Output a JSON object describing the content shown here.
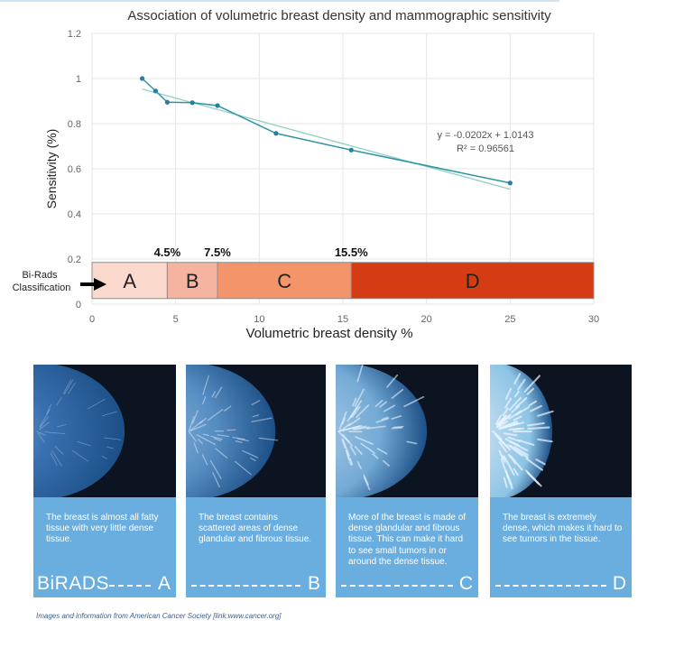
{
  "chart_data": {
    "type": "line",
    "title": "Association of volumetric breast density and mammographic sensitivity",
    "xlabel": "Volumetric breast density %",
    "ylabel": "Sensitivity (%)",
    "xlim": [
      0,
      30
    ],
    "ylim": [
      0,
      1.2
    ],
    "x_ticks": [
      0,
      5,
      10,
      15,
      20,
      25,
      30
    ],
    "y_ticks": [
      0,
      0.2,
      0.4,
      0.6,
      0.8,
      1,
      1.2
    ],
    "x_tick_labels": [
      "0",
      "5",
      "10",
      "15",
      "20",
      "25",
      "30"
    ],
    "y_tick_labels": [
      "0",
      "0.2",
      "0.4",
      "0.6",
      "0.8",
      "1",
      "1.2"
    ],
    "grid": true,
    "series": [
      {
        "x": [
          3,
          3.8,
          4.5,
          6,
          7.5,
          11,
          15.5,
          25
        ],
        "y": [
          1.0,
          0.945,
          0.895,
          0.893,
          0.88,
          0.757,
          0.683,
          0.537
        ],
        "color": "#2e93a3"
      }
    ],
    "trendline": {
      "slope": -0.0202,
      "intercept": 1.0143,
      "x_range": [
        3,
        25
      ],
      "equation": "y = -0.0202x + 1.0143",
      "r2": "R² = 0.96561",
      "color": "#8fd0c2"
    },
    "bands": [
      {
        "label": "A",
        "from": 0,
        "to": 4.5,
        "color": "#fbd9cd"
      },
      {
        "label": "B",
        "from": 4.5,
        "to": 7.5,
        "color": "#f5b49f"
      },
      {
        "label": "C",
        "from": 7.5,
        "to": 15.5,
        "color": "#f4946a"
      },
      {
        "label": "D",
        "from": 15.5,
        "to": 30,
        "color": "#d63c14"
      }
    ],
    "band_range": [
      0.025,
      0.185
    ],
    "thresholds": [
      "4.5%",
      "7.5%",
      "15.5%"
    ],
    "classification_label": [
      "Bi-Rads",
      "Classification"
    ]
  },
  "panels": [
    {
      "text": "The breast is almost all fatty tissue with very little dense tissue.",
      "prefix": "BiRADS",
      "grade": "A",
      "density": 0.15
    },
    {
      "text": "The breast contains scattered areas of dense glandular and fibrous tissue.",
      "prefix": "",
      "grade": "B",
      "density": 0.42
    },
    {
      "text": "More of the breast is made of dense glandular and fibrous tissue. This can make it hard to see small tumors in or around the dense tissue.",
      "prefix": "",
      "grade": "C",
      "density": 0.68
    },
    {
      "text": "The breast is extremely dense, which makes it hard to see tumors in the tissue.",
      "prefix": "",
      "grade": "D",
      "density": 0.92
    }
  ],
  "credit": "Images and information from American Cancer Society [link:www.cancer.org]"
}
